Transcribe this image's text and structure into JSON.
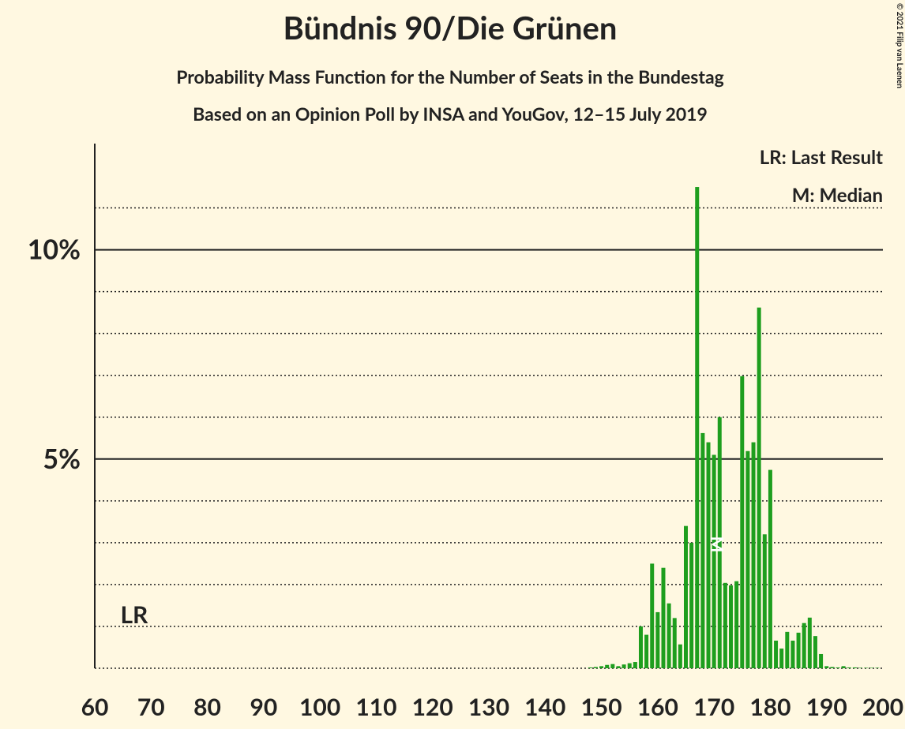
{
  "chart_data": {
    "type": "bar",
    "title": "Bündnis 90/Die Grünen",
    "subtitle": "Probability Mass Function for the Number of Seats in the Bundestag",
    "subtitle2": "Based on an Opinion Poll by INSA and YouGov, 12–15 July 2019",
    "copyright": "© 2021 Filip van Laenen",
    "legend": [
      "LR: Last Result",
      "M: Median"
    ],
    "color": "#1e9e1e",
    "x": [
      148,
      149,
      150,
      151,
      152,
      153,
      154,
      155,
      156,
      157,
      158,
      159,
      160,
      161,
      162,
      163,
      164,
      165,
      166,
      167,
      168,
      169,
      170,
      171,
      172,
      173,
      174,
      175,
      176,
      177,
      178,
      179,
      180,
      181,
      182,
      183,
      184,
      185,
      186,
      187,
      188,
      189,
      190,
      191,
      192,
      193,
      194,
      195,
      196,
      197,
      198,
      199
    ],
    "values": [
      0.02,
      0.03,
      0.05,
      0.08,
      0.1,
      0.05,
      0.09,
      0.12,
      0.15,
      1.0,
      0.8,
      2.5,
      1.34,
      2.4,
      1.55,
      1.2,
      0.57,
      3.4,
      3.0,
      11.5,
      5.62,
      5.4,
      5.1,
      6.0,
      2.04,
      1.98,
      2.08,
      6.98,
      5.19,
      5.4,
      8.62,
      3.2,
      4.74,
      0.66,
      0.47,
      0.87,
      0.66,
      0.85,
      1.08,
      1.21,
      0.77,
      0.34,
      0.05,
      0.03,
      0.02,
      0.05,
      0.02,
      0.02,
      0.01,
      0.01,
      0.01,
      0.01
    ],
    "xlim": [
      60,
      200
    ],
    "xticks": [
      60,
      70,
      80,
      90,
      100,
      110,
      120,
      130,
      140,
      150,
      160,
      170,
      180,
      190,
      200
    ],
    "ylim": [
      0,
      12.5
    ],
    "yticks": [
      {
        "value": 5,
        "label": "5%"
      },
      {
        "value": 10,
        "label": "10%"
      }
    ],
    "minor_yticks": [
      0,
      1,
      2,
      3,
      4,
      6,
      7,
      8,
      9,
      11
    ],
    "annotations": [
      {
        "text": "LR",
        "x": 67
      },
      {
        "text": "M",
        "x": 170
      }
    ]
  }
}
